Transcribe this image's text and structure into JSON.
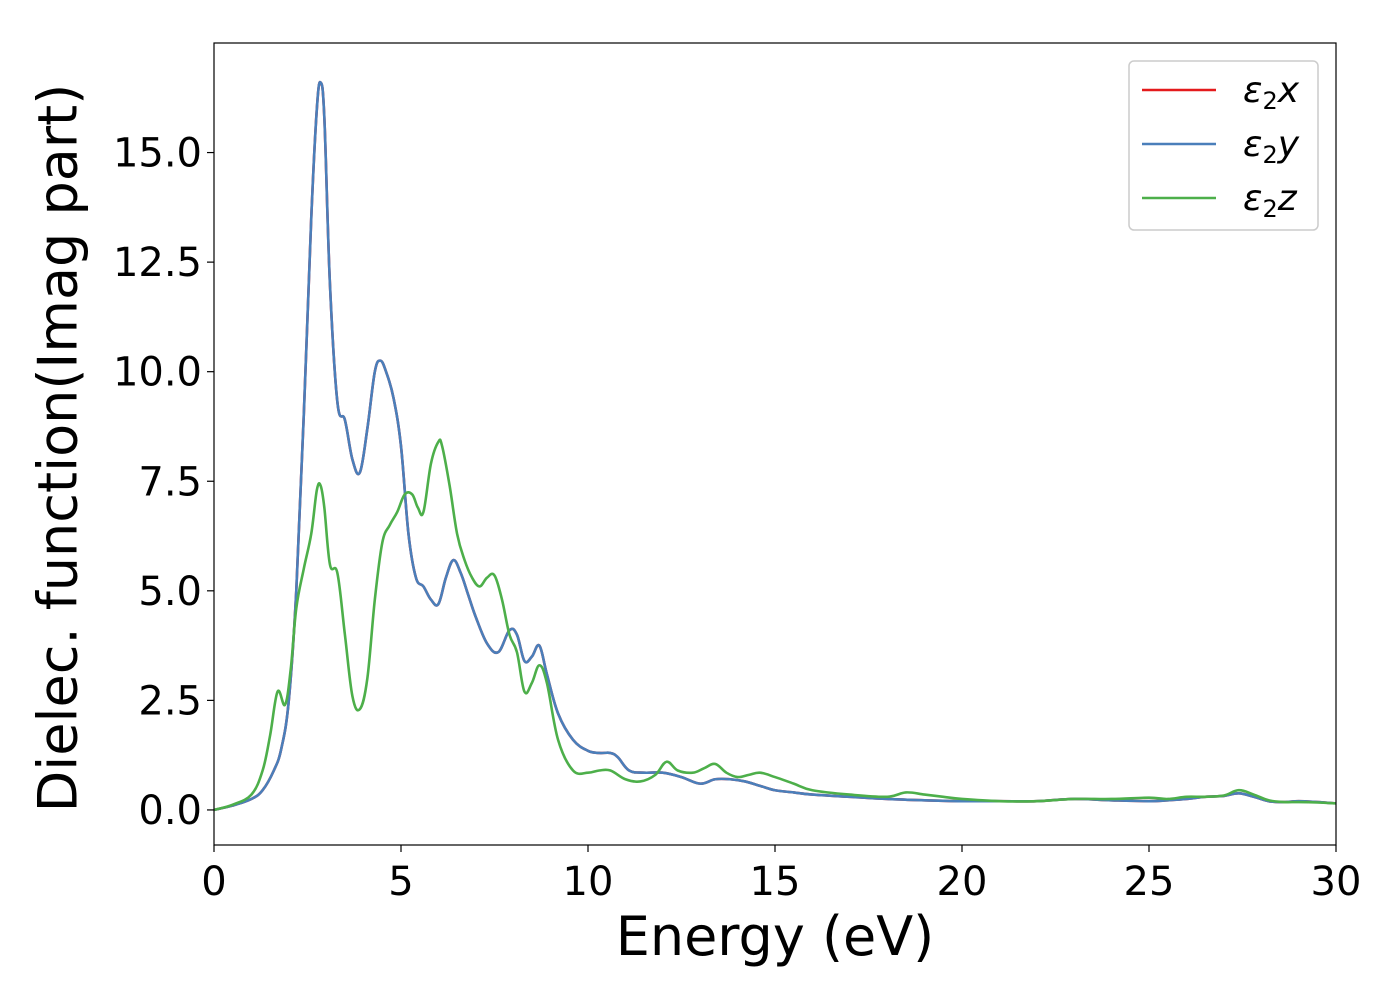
{
  "chart_data": {
    "type": "line",
    "title": "",
    "xlabel": "Energy (eV)",
    "ylabel": "Dielec. function(Imag part)",
    "xlim": [
      0,
      30
    ],
    "ylim": [
      -0.8,
      17.5
    ],
    "xticks": [
      0,
      5,
      10,
      15,
      20,
      25,
      30
    ],
    "xtick_labels": [
      "0",
      "5",
      "10",
      "15",
      "20",
      "25",
      "30"
    ],
    "yticks": [
      0.0,
      2.5,
      5.0,
      7.5,
      10.0,
      12.5,
      15.0
    ],
    "ytick_labels": [
      "0.0",
      "2.5",
      "5.0",
      "7.5",
      "10.0",
      "12.5",
      "15.0"
    ],
    "grid": false,
    "legend_position": "top-right",
    "series": [
      {
        "name": "ε₂x",
        "legend": {
          "base": "ε",
          "sub": "2",
          "var": "x"
        },
        "color": "#e41a1c",
        "x": [
          0,
          0.5,
          1.0,
          1.3,
          1.6,
          1.8,
          2.0,
          2.2,
          2.4,
          2.6,
          2.75,
          2.85,
          2.95,
          3.1,
          3.3,
          3.5,
          3.7,
          3.9,
          4.1,
          4.3,
          4.45,
          4.6,
          4.8,
          5.0,
          5.2,
          5.4,
          5.6,
          5.8,
          6.0,
          6.2,
          6.4,
          6.6,
          6.8,
          7.0,
          7.3,
          7.6,
          7.9,
          8.1,
          8.3,
          8.5,
          8.7,
          8.9,
          9.2,
          9.6,
          10.0,
          10.3,
          10.6,
          10.8,
          11.1,
          11.5,
          12.0,
          12.5,
          13.0,
          13.4,
          13.8,
          14.2,
          14.6,
          15.0,
          15.5,
          16.0,
          17.0,
          18.0,
          19.0,
          20.0,
          21.0,
          22.0,
          23.0,
          24.0,
          25.0,
          25.5,
          26.0,
          26.5,
          27.0,
          27.4,
          27.8,
          28.2,
          28.6,
          29.0,
          29.5,
          30.0
        ],
        "values": [
          0.0,
          0.1,
          0.25,
          0.45,
          0.9,
          1.4,
          2.5,
          5.0,
          9.0,
          13.5,
          16.0,
          16.6,
          15.8,
          12.0,
          9.3,
          8.9,
          8.0,
          7.7,
          8.7,
          10.0,
          10.25,
          10.0,
          9.4,
          8.3,
          6.3,
          5.3,
          5.1,
          4.8,
          4.7,
          5.3,
          5.7,
          5.4,
          4.9,
          4.4,
          3.8,
          3.6,
          4.1,
          4.0,
          3.4,
          3.5,
          3.75,
          3.1,
          2.2,
          1.6,
          1.35,
          1.3,
          1.3,
          1.2,
          0.9,
          0.85,
          0.85,
          0.75,
          0.6,
          0.7,
          0.7,
          0.65,
          0.55,
          0.45,
          0.4,
          0.35,
          0.3,
          0.25,
          0.22,
          0.2,
          0.2,
          0.2,
          0.25,
          0.22,
          0.2,
          0.22,
          0.25,
          0.3,
          0.32,
          0.38,
          0.3,
          0.2,
          0.18,
          0.2,
          0.18,
          0.15
        ]
      },
      {
        "name": "ε₂y",
        "legend": {
          "base": "ε",
          "sub": "2",
          "var": "y"
        },
        "color": "#4a7fba",
        "x": [
          0,
          0.5,
          1.0,
          1.3,
          1.6,
          1.8,
          2.0,
          2.2,
          2.4,
          2.6,
          2.75,
          2.85,
          2.95,
          3.1,
          3.3,
          3.5,
          3.7,
          3.9,
          4.1,
          4.3,
          4.45,
          4.6,
          4.8,
          5.0,
          5.2,
          5.4,
          5.6,
          5.8,
          6.0,
          6.2,
          6.4,
          6.6,
          6.8,
          7.0,
          7.3,
          7.6,
          7.9,
          8.1,
          8.3,
          8.5,
          8.7,
          8.9,
          9.2,
          9.6,
          10.0,
          10.3,
          10.6,
          10.8,
          11.1,
          11.5,
          12.0,
          12.5,
          13.0,
          13.4,
          13.8,
          14.2,
          14.6,
          15.0,
          15.5,
          16.0,
          17.0,
          18.0,
          19.0,
          20.0,
          21.0,
          22.0,
          23.0,
          24.0,
          25.0,
          25.5,
          26.0,
          26.5,
          27.0,
          27.4,
          27.8,
          28.2,
          28.6,
          29.0,
          29.5,
          30.0
        ],
        "values": [
          0.0,
          0.1,
          0.25,
          0.45,
          0.9,
          1.4,
          2.5,
          5.0,
          9.0,
          13.5,
          16.0,
          16.6,
          15.8,
          12.0,
          9.3,
          8.9,
          8.0,
          7.7,
          8.7,
          10.0,
          10.25,
          10.0,
          9.4,
          8.3,
          6.3,
          5.3,
          5.1,
          4.8,
          4.7,
          5.3,
          5.7,
          5.4,
          4.9,
          4.4,
          3.8,
          3.6,
          4.1,
          4.0,
          3.4,
          3.5,
          3.75,
          3.1,
          2.2,
          1.6,
          1.35,
          1.3,
          1.3,
          1.2,
          0.9,
          0.85,
          0.85,
          0.75,
          0.6,
          0.7,
          0.7,
          0.65,
          0.55,
          0.45,
          0.4,
          0.35,
          0.3,
          0.25,
          0.22,
          0.2,
          0.2,
          0.2,
          0.25,
          0.22,
          0.2,
          0.22,
          0.25,
          0.3,
          0.32,
          0.38,
          0.3,
          0.2,
          0.18,
          0.2,
          0.18,
          0.15
        ]
      },
      {
        "name": "ε₂z",
        "legend": {
          "base": "ε",
          "sub": "2",
          "var": "z"
        },
        "color": "#4daf4a",
        "x": [
          0,
          0.5,
          1.0,
          1.3,
          1.5,
          1.7,
          1.9,
          2.05,
          2.2,
          2.4,
          2.6,
          2.75,
          2.85,
          2.95,
          3.1,
          3.3,
          3.5,
          3.7,
          3.9,
          4.1,
          4.3,
          4.5,
          4.7,
          4.9,
          5.1,
          5.3,
          5.45,
          5.6,
          5.8,
          6.0,
          6.1,
          6.3,
          6.5,
          6.7,
          6.9,
          7.1,
          7.3,
          7.5,
          7.7,
          7.9,
          8.1,
          8.3,
          8.5,
          8.7,
          8.9,
          9.2,
          9.6,
          10.0,
          10.3,
          10.6,
          11.0,
          11.4,
          11.8,
          12.1,
          12.4,
          12.8,
          13.1,
          13.4,
          13.7,
          14.0,
          14.3,
          14.6,
          15.0,
          15.5,
          16.0,
          17.0,
          18.0,
          18.5,
          19.0,
          19.5,
          20.0,
          21.0,
          22.0,
          23.0,
          24.0,
          25.0,
          25.5,
          26.0,
          26.5,
          27.0,
          27.4,
          27.8,
          28.2,
          28.6,
          29.0,
          29.5,
          30.0
        ],
        "values": [
          0.0,
          0.12,
          0.35,
          0.9,
          1.7,
          2.7,
          2.4,
          3.2,
          4.6,
          5.5,
          6.3,
          7.3,
          7.4,
          6.9,
          5.6,
          5.4,
          4.0,
          2.6,
          2.3,
          3.0,
          4.8,
          6.1,
          6.5,
          6.8,
          7.2,
          7.2,
          6.9,
          6.8,
          7.9,
          8.4,
          8.3,
          7.4,
          6.3,
          5.7,
          5.3,
          5.1,
          5.3,
          5.35,
          4.8,
          4.0,
          3.6,
          2.7,
          2.9,
          3.3,
          2.9,
          1.6,
          0.9,
          0.85,
          0.9,
          0.9,
          0.7,
          0.65,
          0.8,
          1.1,
          0.9,
          0.85,
          0.95,
          1.05,
          0.85,
          0.75,
          0.8,
          0.85,
          0.75,
          0.6,
          0.45,
          0.35,
          0.3,
          0.4,
          0.35,
          0.3,
          0.25,
          0.2,
          0.2,
          0.25,
          0.25,
          0.28,
          0.25,
          0.3,
          0.3,
          0.33,
          0.45,
          0.35,
          0.22,
          0.18,
          0.18,
          0.17,
          0.15
        ]
      }
    ]
  }
}
